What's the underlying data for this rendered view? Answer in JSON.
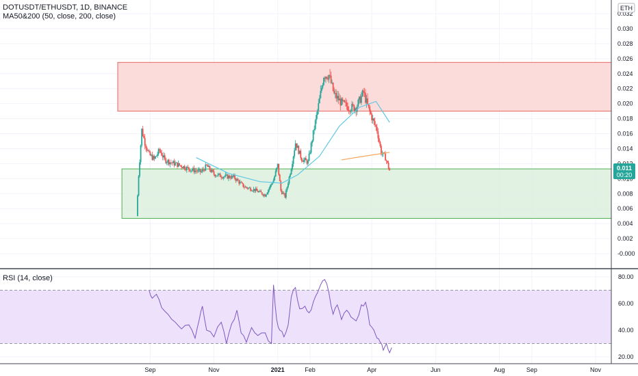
{
  "header": {
    "title": "DOTUSDT/ETHUSDT, 1D, BINANCE",
    "indicator": "MA50&200 (50, close, 200, close)",
    "rsi_label": "RSI (14, close)",
    "currency_badge": "ETH"
  },
  "price_badge": {
    "value": "0.011",
    "countdown": "00:20"
  },
  "colors": {
    "up": "#26a69a",
    "down": "#ef5350",
    "ma50": "#5ec8e5",
    "ma200": "#f5a860",
    "rsi_line": "#7e57c2",
    "red_zone_fill": "#fbd6d4",
    "red_zone_stroke": "#e8645f",
    "green_zone_fill": "#dcefdd",
    "green_zone_stroke": "#4caf50",
    "rsi_band_fill": "#eee1fb",
    "badge": "#26a69a"
  },
  "chart_data": [
    {
      "type": "candlestick",
      "title": "DOTUSDT/ETHUSDT, 1D, BINANCE",
      "ylim": [
        -0.002,
        0.032
      ],
      "y_ticks": [
        "0.032",
        "0.030",
        "0.028",
        "0.026",
        "0.024",
        "0.022",
        "0.020",
        "0.018",
        "0.016",
        "0.014",
        "0.012",
        "0.010",
        "0.008",
        "0.006",
        "0.004",
        "0.002",
        "-0.000"
      ],
      "x_ticks": [
        "Sep",
        "Nov",
        "2021",
        "Feb",
        "Apr",
        "Jun",
        "Aug",
        "Sep",
        "Nov"
      ],
      "date_range": [
        "2020-08-18",
        "2021-11-30"
      ],
      "price_path": [
        [
          "2020-08-19",
          0.005
        ],
        [
          "2020-08-21",
          0.0105
        ],
        [
          "2020-08-24",
          0.0165
        ],
        [
          "2020-08-27",
          0.0148
        ],
        [
          "2020-08-31",
          0.0132
        ],
        [
          "2020-09-05",
          0.0126
        ],
        [
          "2020-09-10",
          0.0138
        ],
        [
          "2020-09-15",
          0.0125
        ],
        [
          "2020-09-22",
          0.0121
        ],
        [
          "2020-10-01",
          0.0117
        ],
        [
          "2020-10-10",
          0.0112
        ],
        [
          "2020-10-20",
          0.0109
        ],
        [
          "2020-10-25",
          0.0117
        ],
        [
          "2020-11-01",
          0.0106
        ],
        [
          "2020-11-10",
          0.0103
        ],
        [
          "2020-11-20",
          0.0102
        ],
        [
          "2020-11-30",
          0.0089
        ],
        [
          "2020-12-10",
          0.0085
        ],
        [
          "2020-12-20",
          0.0078
        ],
        [
          "2020-12-28",
          0.0098
        ],
        [
          "2021-01-01",
          0.0118
        ],
        [
          "2021-01-04",
          0.0084
        ],
        [
          "2021-01-08",
          0.0076
        ],
        [
          "2021-01-14",
          0.0115
        ],
        [
          "2021-01-18",
          0.0148
        ],
        [
          "2021-01-24",
          0.0126
        ],
        [
          "2021-01-30",
          0.0122
        ],
        [
          "2021-02-05",
          0.0168
        ],
        [
          "2021-02-10",
          0.0205
        ],
        [
          "2021-02-14",
          0.0238
        ],
        [
          "2021-02-19",
          0.0238
        ],
        [
          "2021-02-24",
          0.0212
        ],
        [
          "2021-03-03",
          0.0201
        ],
        [
          "2021-03-10",
          0.0195
        ],
        [
          "2021-03-17",
          0.0195
        ],
        [
          "2021-03-24",
          0.0215
        ],
        [
          "2021-03-29",
          0.0193
        ],
        [
          "2021-04-02",
          0.0178
        ],
        [
          "2021-04-06",
          0.0165
        ],
        [
          "2021-04-10",
          0.0135
        ],
        [
          "2021-04-14",
          0.0128
        ],
        [
          "2021-04-18",
          0.0111
        ]
      ],
      "ma50": [
        [
          "2020-10-15",
          0.0128
        ],
        [
          "2020-11-15",
          0.0107
        ],
        [
          "2020-12-15",
          0.0096
        ],
        [
          "2021-01-05",
          0.0094
        ],
        [
          "2021-01-20",
          0.0105
        ],
        [
          "2021-02-10",
          0.013
        ],
        [
          "2021-03-01",
          0.017
        ],
        [
          "2021-03-20",
          0.0195
        ],
        [
          "2021-04-05",
          0.0203
        ],
        [
          "2021-04-18",
          0.0175
        ]
      ],
      "ma200": [
        [
          "2021-03-03",
          0.0125
        ],
        [
          "2021-03-25",
          0.013
        ],
        [
          "2021-04-18",
          0.0135
        ]
      ],
      "zones": [
        {
          "color": "red",
          "start": "2020-08-01",
          "end": "2021-11-30",
          "top": 0.0255,
          "bottom": 0.019
        },
        {
          "color": "green",
          "start": "2020-08-05",
          "end": "2021-11-30",
          "top": 0.0113,
          "bottom": 0.0047
        }
      ]
    },
    {
      "type": "line",
      "title": "RSI (14, close)",
      "ylim": [
        17,
        83
      ],
      "y_ticks": [
        "80.00",
        "60.00",
        "40.00",
        "20.00"
      ],
      "band": [
        30,
        70
      ],
      "series": [
        {
          "values": [
            [
              "2020-08-31",
              70
            ],
            [
              "2020-09-03",
              64
            ],
            [
              "2020-09-07",
              67
            ],
            [
              "2020-09-12",
              57
            ],
            [
              "2020-09-18",
              52
            ],
            [
              "2020-09-25",
              46
            ],
            [
              "2020-10-01",
              41
            ],
            [
              "2020-10-08",
              44
            ],
            [
              "2020-10-14",
              34
            ],
            [
              "2020-10-18",
              48
            ],
            [
              "2020-10-21",
              58
            ],
            [
              "2020-10-25",
              40
            ],
            [
              "2020-11-01",
              35
            ],
            [
              "2020-11-08",
              46
            ],
            [
              "2020-11-13",
              30
            ],
            [
              "2020-11-18",
              45
            ],
            [
              "2020-11-23",
              55
            ],
            [
              "2020-11-27",
              38
            ],
            [
              "2020-12-02",
              31
            ],
            [
              "2020-12-07",
              42
            ],
            [
              "2020-12-13",
              36
            ],
            [
              "2020-12-20",
              38
            ],
            [
              "2020-12-26",
              30
            ],
            [
              "2020-12-28",
              74
            ],
            [
              "2020-12-31",
              48
            ],
            [
              "2021-01-03",
              40
            ],
            [
              "2021-01-07",
              35
            ],
            [
              "2021-01-11",
              44
            ],
            [
              "2021-01-14",
              65
            ],
            [
              "2021-01-18",
              72
            ],
            [
              "2021-01-22",
              56
            ],
            [
              "2021-01-27",
              58
            ],
            [
              "2021-01-31",
              53
            ],
            [
              "2021-02-04",
              61
            ],
            [
              "2021-02-08",
              68
            ],
            [
              "2021-02-11",
              74
            ],
            [
              "2021-02-15",
              78
            ],
            [
              "2021-02-19",
              68
            ],
            [
              "2021-02-23",
              52
            ],
            [
              "2021-02-27",
              59
            ],
            [
              "2021-03-03",
              48
            ],
            [
              "2021-03-08",
              55
            ],
            [
              "2021-03-12",
              50
            ],
            [
              "2021-03-17",
              47
            ],
            [
              "2021-03-22",
              59
            ],
            [
              "2021-03-26",
              61
            ],
            [
              "2021-03-30",
              44
            ],
            [
              "2021-04-03",
              40
            ],
            [
              "2021-04-06",
              34
            ],
            [
              "2021-04-09",
              31
            ],
            [
              "2021-04-12",
              25
            ],
            [
              "2021-04-15",
              30
            ],
            [
              "2021-04-18",
              23
            ],
            [
              "2021-04-20",
              27
            ]
          ]
        }
      ]
    }
  ]
}
